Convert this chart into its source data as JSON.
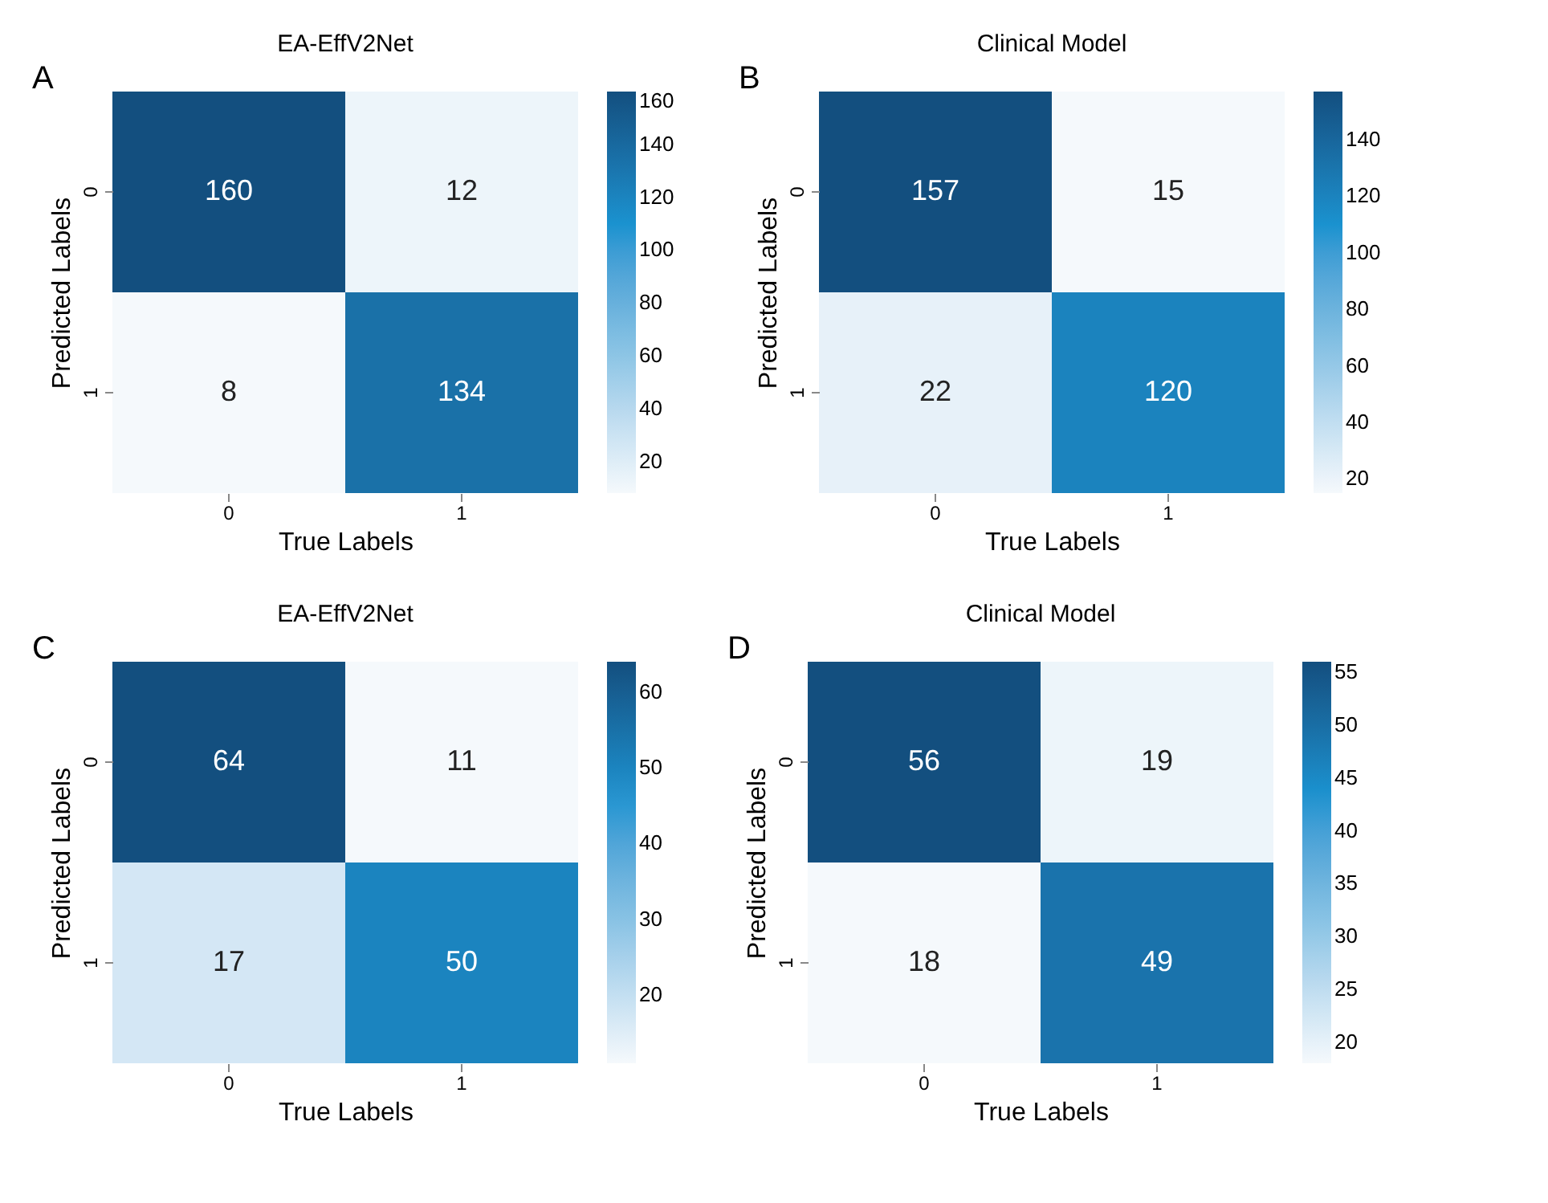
{
  "chart_data": [
    {
      "type": "heatmap",
      "title": "EA-EffV2Net",
      "xlabel": "True Labels",
      "ylabel": "Predicted Labels",
      "annotations": [
        "A"
      ],
      "categories": [
        "0",
        "1"
      ],
      "y_categories": [
        "0",
        "1"
      ],
      "cells": [
        [
          160,
          12
        ],
        [
          8,
          134
        ]
      ],
      "data_labels": true,
      "clim": [
        8,
        160
      ],
      "cticks": [
        20,
        40,
        60,
        80,
        100,
        120,
        140,
        160
      ]
    },
    {
      "type": "heatmap",
      "title": "Clinical Model",
      "xlabel": "True Labels",
      "ylabel": "Predicted Labels",
      "annotations": [
        "B"
      ],
      "categories": [
        "0",
        "1"
      ],
      "y_categories": [
        "0",
        "1"
      ],
      "cells": [
        [
          157,
          15
        ],
        [
          22,
          120
        ]
      ],
      "data_labels": true,
      "clim": [
        15,
        157
      ],
      "cticks": [
        20,
        40,
        60,
        80,
        100,
        120,
        140
      ]
    },
    {
      "type": "heatmap",
      "title": "EA-EffV2Net",
      "xlabel": "True Labels",
      "ylabel": "Predicted Labels",
      "annotations": [
        "C"
      ],
      "categories": [
        "0",
        "1"
      ],
      "y_categories": [
        "0",
        "1"
      ],
      "cells": [
        [
          64,
          11
        ],
        [
          17,
          50
        ]
      ],
      "data_labels": true,
      "clim": [
        11,
        64
      ],
      "cticks": [
        20,
        30,
        40,
        50,
        60
      ]
    },
    {
      "type": "heatmap",
      "title": "Clinical Model",
      "xlabel": "True Labels",
      "ylabel": "Predicted Labels",
      "annotations": [
        "D"
      ],
      "categories": [
        "0",
        "1"
      ],
      "y_categories": [
        "0",
        "1"
      ],
      "cells": [
        [
          56,
          19
        ],
        [
          18,
          49
        ]
      ],
      "data_labels": true,
      "clim": [
        18,
        56
      ],
      "cticks": [
        20,
        25,
        30,
        35,
        40,
        45,
        50,
        55
      ]
    }
  ]
}
